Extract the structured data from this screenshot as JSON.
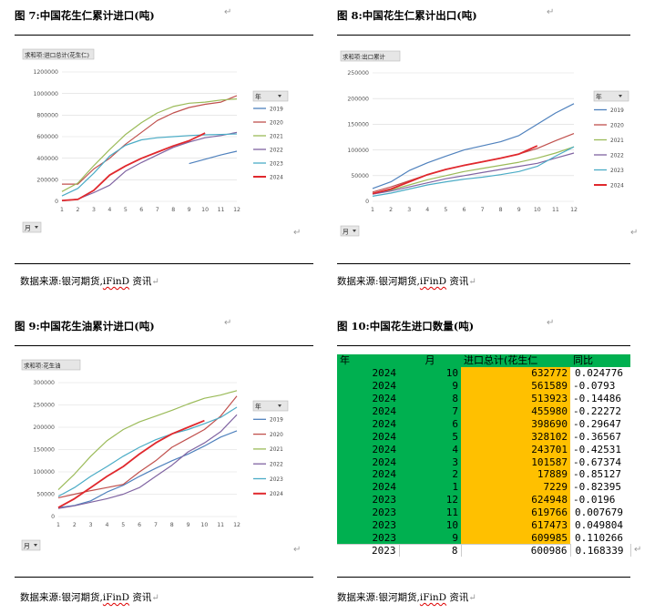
{
  "fig7": {
    "title": "图 7:中国花生仁累计进口(吨)",
    "source_prefix": "数据来源:银河期货,",
    "source_ifind": "iFinD",
    "source_suffix": "资讯"
  },
  "fig8": {
    "title": "图 8:中国花生仁累计出口(吨)",
    "source_prefix": "数据来源:银河期货,",
    "source_ifind": "iFinD",
    "source_suffix": "资讯"
  },
  "fig9": {
    "title": "图 9:中国花生油累计进口(吨)",
    "source_prefix": "数据来源:银河期货,",
    "source_ifind": "iFinD",
    "source_suffix": "资讯"
  },
  "fig10": {
    "title": "图 10:中国花生进口数量(吨)",
    "source_prefix": "数据来源:银河期货,",
    "source_ifind": "iFinD",
    "source_suffix": "资讯",
    "table": {
      "headers": [
        "年",
        "月",
        "进口总计(花生仁",
        "同比"
      ],
      "rows": [
        [
          "2024",
          "10",
          "632772",
          "0.024776"
        ],
        [
          "2024",
          "9",
          "561589",
          "-0.0793"
        ],
        [
          "2024",
          "8",
          "513923",
          "-0.14486"
        ],
        [
          "2024",
          "7",
          "455980",
          "-0.22272"
        ],
        [
          "2024",
          "6",
          "398690",
          "-0.29647"
        ],
        [
          "2024",
          "5",
          "328102",
          "-0.36567"
        ],
        [
          "2024",
          "4",
          "243701",
          "-0.42531"
        ],
        [
          "2024",
          "3",
          "101587",
          "-0.67374"
        ],
        [
          "2024",
          "2",
          "17889",
          "-0.85127"
        ],
        [
          "2024",
          "1",
          "7229",
          "-0.82395"
        ],
        [
          "2023",
          "12",
          "624948",
          "-0.0196"
        ],
        [
          "2023",
          "11",
          "619766",
          "0.007679"
        ],
        [
          "2023",
          "10",
          "617473",
          "0.049804"
        ],
        [
          "2023",
          "9",
          "609985",
          "0.110266"
        ],
        [
          "2023",
          "8",
          "600986",
          "0.168339"
        ]
      ]
    }
  },
  "colors": {
    "2019": "#4f81bd",
    "2020": "#c0504d",
    "2021": "#9bbb59",
    "2022": "#8064a2",
    "2023": "#4bacc6",
    "2024": "#e0282d"
  },
  "return_mark": "↵",
  "chart_data": [
    {
      "id": "c7",
      "type": "line",
      "filter_label": "求和项:进口总计(花生仁)",
      "legend_title": "年",
      "axis_field": "月",
      "x": [
        1,
        2,
        3,
        4,
        5,
        6,
        7,
        8,
        9,
        10,
        11,
        12
      ],
      "yticks": [
        0,
        200000,
        400000,
        600000,
        800000,
        1000000,
        1200000
      ],
      "ytick_labels": [
        "0",
        "200000",
        "400000",
        "600000",
        "800000",
        "1000000",
        "1200000"
      ],
      "ylim": [
        0,
        1200000
      ],
      "legend_placement": "right",
      "series": [
        {
          "name": "2019",
          "values": [
            null,
            null,
            null,
            null,
            null,
            null,
            null,
            null,
            350000,
            390000,
            430000,
            465000
          ]
        },
        {
          "name": "2020",
          "values": [
            160000,
            160000,
            300000,
            400000,
            530000,
            640000,
            750000,
            820000,
            870000,
            900000,
            920000,
            980000
          ]
        },
        {
          "name": "2021",
          "values": [
            90000,
            170000,
            330000,
            480000,
            620000,
            730000,
            820000,
            880000,
            910000,
            920000,
            940000,
            950000
          ]
        },
        {
          "name": "2022",
          "values": [
            5000,
            20000,
            80000,
            150000,
            280000,
            360000,
            430000,
            500000,
            550000,
            590000,
            610000,
            640000
          ]
        },
        {
          "name": "2023",
          "values": [
            50000,
            120000,
            260000,
            420000,
            520000,
            570000,
            590000,
            600000,
            610000,
            617000,
            620000,
            625000
          ]
        },
        {
          "name": "2024",
          "values": [
            7229,
            17889,
            101587,
            243701,
            328102,
            398690,
            455980,
            513923,
            561589,
            632772,
            null,
            null
          ]
        }
      ]
    },
    {
      "id": "c8",
      "type": "line",
      "filter_label": "求和项:出口累计",
      "legend_title": "年",
      "axis_field": "月",
      "x": [
        1,
        2,
        3,
        4,
        5,
        6,
        7,
        8,
        9,
        10,
        11,
        12
      ],
      "yticks": [
        0,
        50000,
        100000,
        150000,
        200000,
        250000
      ],
      "ytick_labels": [
        "0",
        "50000",
        "100000",
        "150000",
        "200000",
        "250000"
      ],
      "ylim": [
        0,
        250000
      ],
      "legend_placement": "right",
      "series": [
        {
          "name": "2019",
          "values": [
            25000,
            38000,
            60000,
            75000,
            88000,
            100000,
            108000,
            116000,
            128000,
            150000,
            172000,
            190000
          ]
        },
        {
          "name": "2020",
          "values": [
            18000,
            28000,
            40000,
            52000,
            62000,
            70000,
            77000,
            84000,
            92000,
            103000,
            118000,
            132000
          ]
        },
        {
          "name": "2021",
          "values": [
            15000,
            22000,
            32000,
            42000,
            50000,
            58000,
            64000,
            70000,
            76000,
            84000,
            94000,
            106000
          ]
        },
        {
          "name": "2022",
          "values": [
            14000,
            20000,
            28000,
            36000,
            44000,
            50000,
            56000,
            62000,
            68000,
            74000,
            84000,
            94000
          ]
        },
        {
          "name": "2023",
          "values": [
            10000,
            16000,
            24000,
            32000,
            38000,
            43000,
            47000,
            52000,
            58000,
            68000,
            88000,
            106000
          ]
        },
        {
          "name": "2024",
          "values": [
            15000,
            24000,
            38000,
            52000,
            62000,
            70000,
            77000,
            84000,
            92000,
            108000,
            null,
            null
          ]
        }
      ]
    },
    {
      "id": "c9",
      "type": "line",
      "filter_label": "求和项:花生油",
      "legend_title": "年",
      "axis_field": "月",
      "x": [
        1,
        2,
        3,
        4,
        5,
        6,
        7,
        8,
        9,
        10,
        11,
        12
      ],
      "yticks": [
        0,
        50000,
        100000,
        150000,
        200000,
        250000,
        300000
      ],
      "ytick_labels": [
        "0",
        "50000",
        "100000",
        "150000",
        "200000",
        "250000",
        "300000"
      ],
      "ylim": [
        0,
        300000
      ],
      "legend_placement": "right",
      "series": [
        {
          "name": "2019",
          "values": [
            20000,
            25000,
            35000,
            55000,
            70000,
            90000,
            108000,
            125000,
            140000,
            158000,
            178000,
            192000
          ]
        },
        {
          "name": "2020",
          "values": [
            42000,
            50000,
            58000,
            65000,
            72000,
            100000,
            125000,
            155000,
            175000,
            195000,
            225000,
            270000
          ]
        },
        {
          "name": "2021",
          "values": [
            60000,
            95000,
            135000,
            170000,
            195000,
            212000,
            225000,
            238000,
            252000,
            265000,
            272000,
            282000
          ]
        },
        {
          "name": "2022",
          "values": [
            18000,
            24000,
            32000,
            40000,
            50000,
            65000,
            90000,
            115000,
            145000,
            165000,
            190000,
            228000
          ]
        },
        {
          "name": "2023",
          "values": [
            45000,
            65000,
            90000,
            112000,
            135000,
            155000,
            172000,
            185000,
            195000,
            208000,
            222000,
            245000
          ]
        },
        {
          "name": "2024",
          "values": [
            20000,
            40000,
            65000,
            90000,
            112000,
            140000,
            165000,
            185000,
            200000,
            215000,
            null,
            null
          ]
        }
      ]
    }
  ]
}
